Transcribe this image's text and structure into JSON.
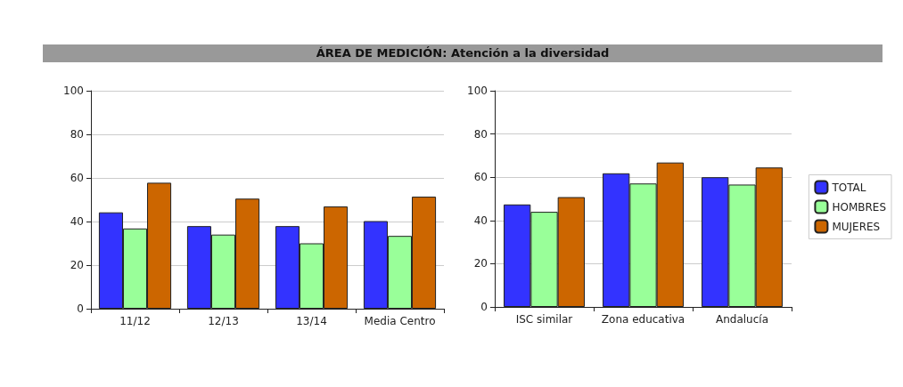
{
  "chart_data": [
    {
      "type": "bar",
      "title": "ÁREA DE MEDICIÓN: Atención a la diversidad",
      "categories": [
        "11/12",
        "12/13",
        "13/14",
        "Media Centro"
      ],
      "series": [
        {
          "color": "#3333ff",
          "values": [
            44.2,
            37.9,
            37.9,
            40.2
          ]
        },
        {
          "color": "#99ff99",
          "values": [
            36.8,
            34,
            30,
            33.4
          ]
        },
        {
          "color": "#cc6600",
          "values": [
            57.8,
            50.5,
            46.9,
            51.4
          ]
        }
      ],
      "ylim": [
        0,
        100
      ],
      "yticks": [
        0,
        20,
        40,
        60,
        80,
        100
      ],
      "grid": "y",
      "legend": false
    },
    {
      "type": "bar",
      "categories": [
        "ISC similar",
        "Zona educativa",
        "Andalucía"
      ],
      "series": [
        {
          "name": "TOTAL",
          "color": "#3333ff",
          "values": [
            47.4,
            61.8,
            60
          ]
        },
        {
          "name": "HOMBRES",
          "color": "#99ff99",
          "values": [
            44,
            57.1,
            56.6
          ]
        },
        {
          "name": "MUJERES",
          "color": "#cc6600",
          "values": [
            50.8,
            66.8,
            64.5
          ]
        }
      ],
      "ylim": [
        0,
        100
      ],
      "yticks": [
        0,
        20,
        40,
        60,
        80,
        100
      ],
      "grid": "y",
      "legend": "right"
    }
  ]
}
